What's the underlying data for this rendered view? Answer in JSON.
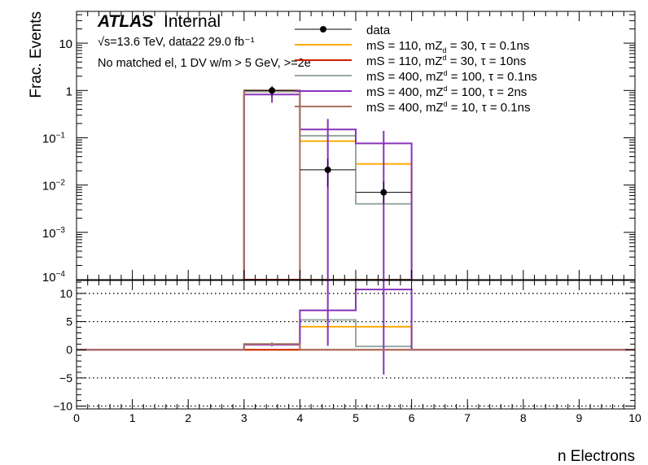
{
  "chart_data": [
    {
      "type": "line",
      "subtype": "step-histogram",
      "panel": "main",
      "ylabel": "Frac. Events",
      "yscale": "log",
      "ylim": [
        0.0001,
        47
      ],
      "xlim": [
        0,
        10
      ],
      "yticks": [
        "10^{-4}",
        "10^{-3}",
        "10^{-2}",
        "10^{-1}",
        "1",
        "10"
      ],
      "atlas_label": "ATLAS",
      "atlas_sub": "Internal",
      "energy_label": "√s=13.6 TeV, data22 29.0 fb⁻¹",
      "selection_label": "No matched el, 1 DV w/m > 5 GeV, >=2e",
      "legend_position": "top-right",
      "bin_edges": [
        3,
        4,
        5,
        6
      ],
      "data": {
        "name": "data",
        "x": [
          3.5,
          4.5,
          5.5
        ],
        "y": [
          1.0,
          0.021,
          0.007
        ],
        "yerr_low": [
          0.75,
          0.009,
          0.004
        ],
        "yerr_high": [
          1.25,
          0.036,
          0.012
        ]
      },
      "series": [
        {
          "name": "mS = 110, mZ_d = 30, τ = 0.1ns",
          "label_main": "mS = 110, mZ",
          "label_sub": "d",
          "label_rest": " = 30, τ = 0.1ns",
          "color": "#ffaa00",
          "values": [
            0.95,
            0.085,
            0.028
          ]
        },
        {
          "name": "mS = 110, mZ_d = 30, τ = 10ns",
          "label_main": "mS = 110, mZ",
          "label_sub": "d",
          "label_rest": " = 30, τ = 10ns",
          "color": "#cc2200",
          "values": [
            0,
            0,
            0
          ]
        },
        {
          "name": "mS = 400, mZ_d = 100, τ = 0.1ns",
          "label_main": "mS = 400, mZ",
          "label_sub": "d",
          "label_rest": " = 100, τ = 0.1ns",
          "color": "#99a8a4",
          "values": [
            0.95,
            0.11,
            0.004
          ]
        },
        {
          "name": "mS = 400, mZ_d = 100, τ = 2ns",
          "label_main": "mS = 400, mZ",
          "label_sub": "d",
          "label_rest": " = 100, τ = 2ns",
          "color": "#8833bb",
          "values": [
            0.82,
            0.15,
            0.076
          ],
          "err_low": [
            0.55,
            0.0001,
            0.0001
          ],
          "err_high": [
            1.1,
            0.25,
            0.14
          ]
        },
        {
          "name": "mS = 400, mZ_d = 10, τ = 0.1ns",
          "label_main": "mS = 400, mZ",
          "label_sub": "d",
          "label_rest": " = 10, τ = 0.1ns",
          "color": "#aa7060",
          "values": [
            1.0,
            0,
            0
          ]
        }
      ]
    },
    {
      "type": "line",
      "subtype": "step-ratio",
      "panel": "ratio",
      "xlabel": "n Electrons",
      "ylim": [
        -10.5,
        12.3
      ],
      "yticks": [
        -10,
        -5,
        0,
        5,
        10
      ],
      "xticks": [
        0,
        1,
        2,
        3,
        4,
        5,
        6,
        7,
        8,
        9,
        10
      ],
      "grid": "dotted at y ticks",
      "bin_edges": [
        3,
        4,
        5,
        6
      ],
      "data": {
        "x": [
          3.5
        ],
        "y": [
          1.0
        ]
      },
      "series": [
        {
          "color": "#ffaa00",
          "values": [
            0,
            4.1,
            4.1
          ]
        },
        {
          "color": "#cc2200",
          "values": [
            0,
            0,
            0
          ]
        },
        {
          "color": "#99a8a4",
          "values": [
            1.0,
            5.3,
            0.6
          ]
        },
        {
          "color": "#8833bb",
          "values": [
            0.9,
            7.0,
            10.7
          ],
          "err_low": [
            0.6,
            0.7,
            -4.4
          ],
          "err_high": [
            1.3,
            12.3,
            12.3
          ]
        },
        {
          "color": "#aa7060",
          "values": [
            1.0,
            0,
            0
          ]
        }
      ]
    }
  ]
}
